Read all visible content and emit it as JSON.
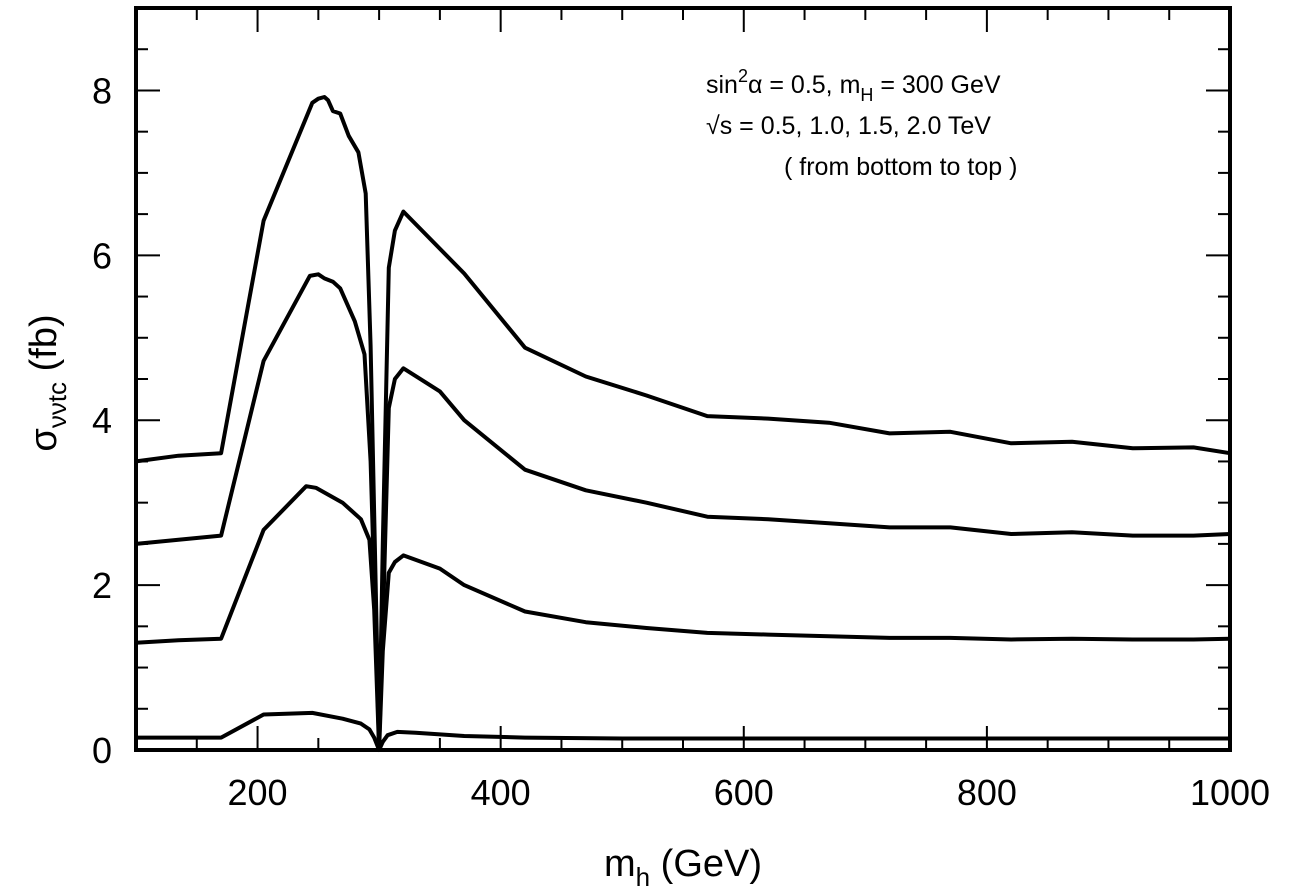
{
  "chart_data": {
    "type": "line",
    "xlabel": {
      "main": "m",
      "sub": "h",
      "rest": " (GeV)"
    },
    "ylabel": {
      "main": "σ",
      "sub": "ννtc",
      "rest": " (fb)"
    },
    "xlim": [
      100,
      1000
    ],
    "ylim": [
      0,
      9.0
    ],
    "xticks": [
      200,
      400,
      600,
      800,
      1000
    ],
    "yticks": [
      0,
      2,
      4,
      6,
      8
    ],
    "xminor_step": 50,
    "yminor_step": 0.5,
    "grid": false,
    "annotations": {
      "line1": {
        "a": "sin",
        "sup": "2",
        "b": "α = 0.5, m",
        "sub": "H",
        "c": " = 300 GeV"
      },
      "line2": "√s = 0.5, 1.0, 1.5, 2.0 TeV",
      "line3": "( from bottom to top )"
    },
    "series": [
      {
        "color": "#000000",
        "points": [
          [
            100,
            0.15
          ],
          [
            170,
            0.15
          ],
          [
            205,
            0.43
          ],
          [
            245,
            0.45
          ],
          [
            270,
            0.38
          ],
          [
            285,
            0.32
          ],
          [
            292,
            0.25
          ],
          [
            296,
            0.15
          ],
          [
            300,
            0.0
          ],
          [
            303,
            0.1
          ],
          [
            307,
            0.18
          ],
          [
            315,
            0.22
          ],
          [
            330,
            0.21
          ],
          [
            370,
            0.17
          ],
          [
            420,
            0.15
          ],
          [
            500,
            0.14
          ],
          [
            600,
            0.14
          ],
          [
            700,
            0.14
          ],
          [
            800,
            0.14
          ],
          [
            900,
            0.14
          ],
          [
            1000,
            0.14
          ]
        ]
      },
      {
        "color": "#000000",
        "points": [
          [
            100,
            1.3
          ],
          [
            135,
            1.33
          ],
          [
            170,
            1.35
          ],
          [
            205,
            2.67
          ],
          [
            240,
            3.2
          ],
          [
            248,
            3.18
          ],
          [
            270,
            3.0
          ],
          [
            285,
            2.8
          ],
          [
            292,
            2.55
          ],
          [
            296,
            1.7
          ],
          [
            300,
            0.0
          ],
          [
            303,
            1.2
          ],
          [
            308,
            2.15
          ],
          [
            313,
            2.28
          ],
          [
            320,
            2.36
          ],
          [
            350,
            2.2
          ],
          [
            370,
            2.0
          ],
          [
            420,
            1.68
          ],
          [
            470,
            1.55
          ],
          [
            520,
            1.48
          ],
          [
            570,
            1.42
          ],
          [
            620,
            1.4
          ],
          [
            670,
            1.38
          ],
          [
            720,
            1.36
          ],
          [
            770,
            1.36
          ],
          [
            820,
            1.34
          ],
          [
            870,
            1.35
          ],
          [
            920,
            1.34
          ],
          [
            970,
            1.34
          ],
          [
            1000,
            1.35
          ]
        ]
      },
      {
        "color": "#000000",
        "points": [
          [
            100,
            2.5
          ],
          [
            135,
            2.55
          ],
          [
            170,
            2.6
          ],
          [
            205,
            4.72
          ],
          [
            243,
            5.75
          ],
          [
            250,
            5.77
          ],
          [
            255,
            5.72
          ],
          [
            262,
            5.68
          ],
          [
            268,
            5.6
          ],
          [
            280,
            5.2
          ],
          [
            288,
            4.8
          ],
          [
            293,
            3.5
          ],
          [
            300,
            0.05
          ],
          [
            303,
            1.5
          ],
          [
            308,
            4.15
          ],
          [
            313,
            4.5
          ],
          [
            320,
            4.63
          ],
          [
            350,
            4.35
          ],
          [
            370,
            4.0
          ],
          [
            420,
            3.4
          ],
          [
            470,
            3.15
          ],
          [
            520,
            3.0
          ],
          [
            570,
            2.83
          ],
          [
            620,
            2.8
          ],
          [
            670,
            2.75
          ],
          [
            720,
            2.7
          ],
          [
            770,
            2.7
          ],
          [
            820,
            2.62
          ],
          [
            870,
            2.64
          ],
          [
            920,
            2.6
          ],
          [
            970,
            2.6
          ],
          [
            1000,
            2.62
          ]
        ]
      },
      {
        "color": "#000000",
        "points": [
          [
            100,
            3.5
          ],
          [
            135,
            3.57
          ],
          [
            170,
            3.6
          ],
          [
            205,
            6.42
          ],
          [
            245,
            7.85
          ],
          [
            250,
            7.9
          ],
          [
            255,
            7.92
          ],
          [
            258,
            7.88
          ],
          [
            262,
            7.75
          ],
          [
            268,
            7.72
          ],
          [
            275,
            7.45
          ],
          [
            283,
            7.25
          ],
          [
            289,
            6.75
          ],
          [
            293,
            4.9
          ],
          [
            300,
            0.05
          ],
          [
            303,
            2.5
          ],
          [
            308,
            5.85
          ],
          [
            313,
            6.3
          ],
          [
            320,
            6.53
          ],
          [
            370,
            5.78
          ],
          [
            420,
            4.88
          ],
          [
            470,
            4.53
          ],
          [
            520,
            4.3
          ],
          [
            570,
            4.05
          ],
          [
            620,
            4.02
          ],
          [
            670,
            3.97
          ],
          [
            720,
            3.84
          ],
          [
            770,
            3.86
          ],
          [
            820,
            3.72
          ],
          [
            870,
            3.74
          ],
          [
            920,
            3.66
          ],
          [
            970,
            3.67
          ],
          [
            1000,
            3.6
          ]
        ]
      }
    ]
  }
}
